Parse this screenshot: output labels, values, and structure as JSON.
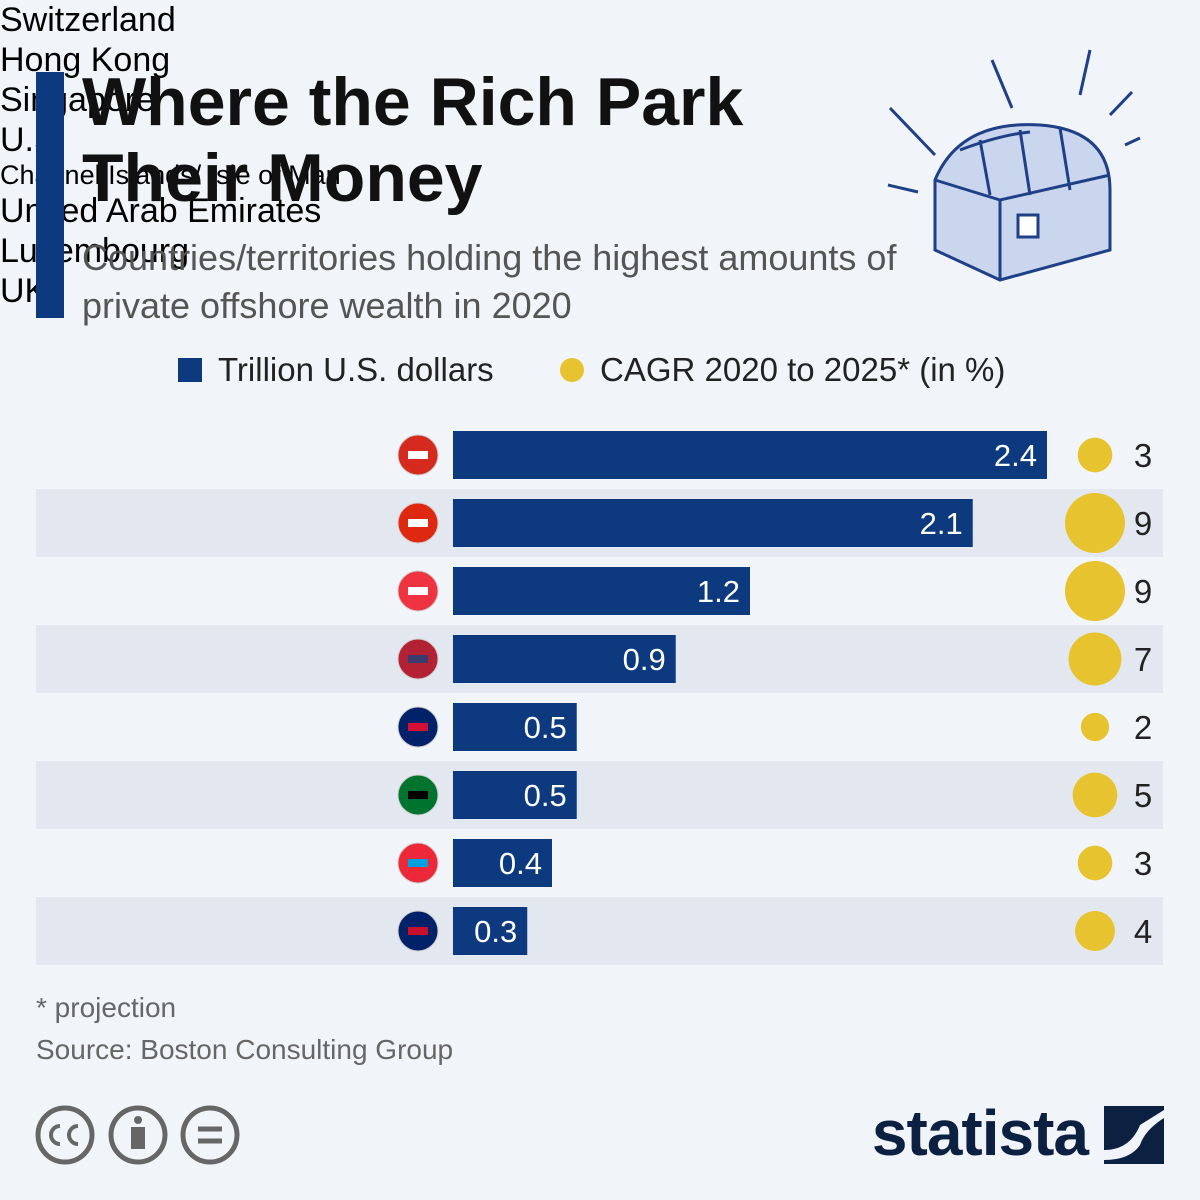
{
  "chart_data": {
    "type": "bar",
    "title": "Where the Rich Park Their Money",
    "subtitle": "Countries/territories holding the highest amounts of private offshore wealth in 2020",
    "categories": [
      "Switzerland",
      "Hong Kong",
      "Singapore",
      "U.S.",
      "Channel Islands/\nIsle of Man",
      "United Arab Emirates",
      "Luxembourg",
      "UK"
    ],
    "series": [
      {
        "name": "Trillion U.S. dollars",
        "color": "#0d3a7e",
        "values": [
          2.4,
          2.1,
          1.2,
          0.9,
          0.5,
          0.5,
          0.4,
          0.3
        ]
      },
      {
        "name": "CAGR 2020 to 2025* (in %)",
        "color": "#e8c330",
        "values": [
          3,
          9,
          9,
          7,
          2,
          5,
          3,
          4
        ]
      }
    ],
    "footnote": "* projection",
    "source": "Source: Boston Consulting Group",
    "brand": "statista"
  }
}
